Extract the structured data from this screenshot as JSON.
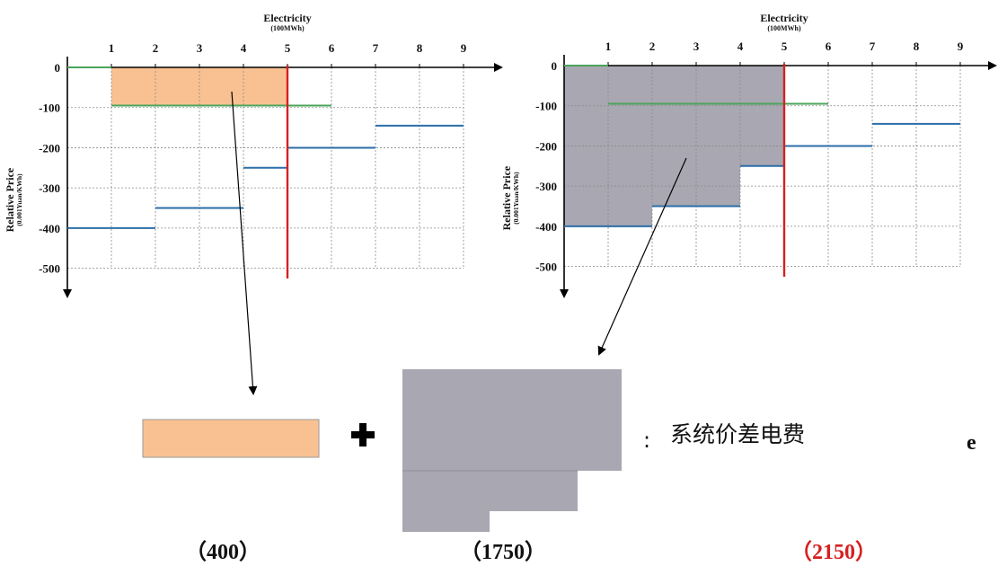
{
  "charts": [
    {
      "id": "left",
      "xlabel": "Electricity",
      "xunit": "(100MWh)",
      "ylabel": "Relative Price",
      "yunit": "(0.001Yuan/KWh)",
      "x_ticks": [
        "1",
        "2",
        "3",
        "4",
        "5",
        "6",
        "7",
        "8",
        "9"
      ],
      "y_ticks": [
        "0",
        "-100",
        "-200",
        "-300",
        "-400",
        "-500"
      ],
      "highlight": "orange"
    },
    {
      "id": "right",
      "xlabel": "Electricity",
      "xunit": "(100MWh)",
      "ylabel": "Relative Price",
      "yunit": "(0.001Yuan/KWh)",
      "x_ticks": [
        "1",
        "2",
        "3",
        "4",
        "5",
        "6",
        "7",
        "8",
        "9"
      ],
      "y_ticks": [
        "0",
        "-100",
        "-200",
        "-300",
        "-400",
        "-500"
      ],
      "highlight": "gray"
    }
  ],
  "chart_data": {
    "type": "line",
    "xlabel": "Electricity (100MWh)",
    "ylabel": "Relative Price (0.001Yuan/KWh)",
    "xlim": [
      0,
      9
    ],
    "ylim": [
      -500,
      0
    ],
    "clearing_quantity": 5,
    "series": [
      {
        "segments": [
          [
            0,
            1,
            0
          ],
          [
            1,
            2,
            -95
          ],
          [
            2,
            3,
            -95
          ],
          [
            3,
            4,
            -95
          ],
          [
            4,
            5,
            -95
          ],
          [
            5,
            6,
            -95
          ]
        ]
      },
      {
        "segments": [
          [
            0,
            2,
            -400
          ],
          [
            2,
            4,
            -350
          ],
          [
            4,
            5,
            -250
          ],
          [
            5,
            7,
            -200
          ],
          [
            7,
            9,
            -145
          ]
        ]
      }
    ]
  },
  "legend": {
    "colon": ":",
    "text": "系统价差电费",
    "suffix": "e"
  },
  "captions": {
    "left": "（400）",
    "middle": "（1750）",
    "right": "（2150）"
  },
  "colors": {
    "orange_fill": "#f9c192",
    "gray_fill": "#a9a7b2",
    "green": "#4aa55a",
    "blue": "#2c6ea8",
    "red_line": "#d62020",
    "red_text": "#d62020"
  }
}
